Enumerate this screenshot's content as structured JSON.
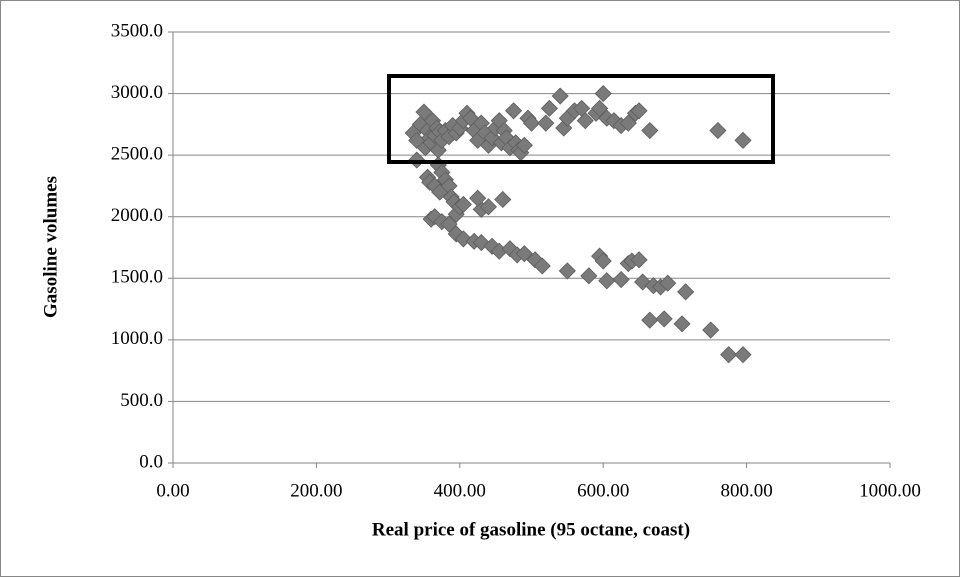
{
  "chart_data": {
    "type": "scatter",
    "x_label": "Real price of gasoline (95 octane, coast)",
    "y_label": "Gasoline volumes",
    "xlim": [
      0,
      1000
    ],
    "ylim": [
      0,
      3500
    ],
    "xticks": [
      {
        "value": 0,
        "label": "0.00"
      },
      {
        "value": 200,
        "label": "200.00"
      },
      {
        "value": 400,
        "label": "400.00"
      },
      {
        "value": 600,
        "label": "600.00"
      },
      {
        "value": 800,
        "label": "800.00"
      },
      {
        "value": 1000,
        "label": "1000.00"
      }
    ],
    "yticks": [
      {
        "value": 0,
        "label": "0.0"
      },
      {
        "value": 500,
        "label": "500.0"
      },
      {
        "value": 1000,
        "label": "1000.0"
      },
      {
        "value": 1500,
        "label": "1500.0"
      },
      {
        "value": 2000,
        "label": "2000.0"
      },
      {
        "value": 2500,
        "label": "2500.0"
      },
      {
        "value": 3000,
        "label": "3000.0"
      },
      {
        "value": 3500,
        "label": "3500.0"
      }
    ],
    "grid": true,
    "color": "#7a7a7a",
    "x": [
      335,
      340,
      345,
      350,
      352,
      355,
      358,
      360,
      362,
      365,
      368,
      370,
      372,
      375,
      380,
      385,
      390,
      395,
      400,
      405,
      410,
      415,
      420,
      425,
      430,
      435,
      440,
      445,
      450,
      455,
      458,
      462,
      465,
      470,
      475,
      478,
      482,
      485,
      490,
      495,
      500,
      520,
      525,
      540,
      545,
      550,
      560,
      570,
      575,
      590,
      595,
      600,
      605,
      615,
      625,
      635,
      645,
      650,
      665,
      760,
      795,
      340,
      355,
      358,
      365,
      370,
      372,
      375,
      380,
      385,
      388,
      392,
      395,
      400,
      405,
      430,
      440,
      425,
      460,
      360,
      365,
      375,
      385,
      395,
      405,
      420,
      430,
      445,
      455,
      470,
      480,
      490,
      505,
      515,
      550,
      580,
      595,
      600,
      605,
      625,
      635,
      640,
      650,
      655,
      670,
      680,
      690,
      715,
      665,
      685,
      710,
      750,
      775,
      795
    ],
    "values": [
      2680,
      2620,
      2750,
      2850,
      2560,
      2700,
      2640,
      2600,
      2780,
      2660,
      2720,
      2540,
      2690,
      2620,
      2700,
      2650,
      2740,
      2680,
      2720,
      2780,
      2840,
      2800,
      2700,
      2620,
      2760,
      2680,
      2580,
      2640,
      2720,
      2780,
      2600,
      2700,
      2640,
      2560,
      2860,
      2600,
      2540,
      2520,
      2580,
      2800,
      2760,
      2760,
      2880,
      2980,
      2720,
      2800,
      2860,
      2880,
      2780,
      2840,
      2880,
      3000,
      2800,
      2780,
      2740,
      2760,
      2840,
      2860,
      2700,
      2700,
      2620,
      2460,
      2320,
      2280,
      2250,
      2420,
      2200,
      2360,
      2300,
      2250,
      2160,
      2120,
      2020,
      2080,
      2100,
      2060,
      2080,
      2150,
      2140,
      1980,
      2000,
      1960,
      1940,
      1860,
      1820,
      1800,
      1790,
      1760,
      1720,
      1740,
      1690,
      1700,
      1650,
      1600,
      1560,
      1520,
      1680,
      1640,
      1480,
      1490,
      1620,
      1640,
      1650,
      1470,
      1440,
      1430,
      1460,
      1390,
      1160,
      1170,
      1130,
      1080,
      880,
      880
    ]
  }
}
